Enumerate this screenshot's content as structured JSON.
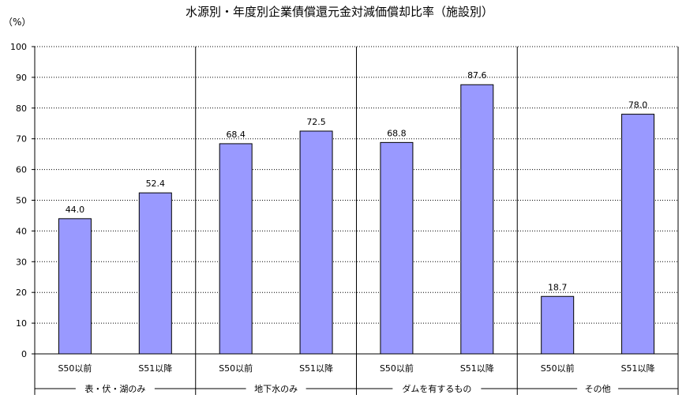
{
  "chart_data": {
    "type": "bar",
    "title": "水源別・年度別企業債償還元金対減価償却比率（施設別）",
    "ylabel": "（%）",
    "ylim": [
      0,
      100
    ],
    "yticks": [
      0,
      10,
      20,
      30,
      40,
      50,
      60,
      70,
      80,
      90,
      100
    ],
    "grid": true,
    "legend": "none",
    "groups": [
      {
        "name": "表・伏・湖のみ",
        "categories": [
          "S50以前",
          "S51以降"
        ],
        "values": [
          44.0,
          52.4
        ],
        "labels": [
          "44.0",
          "52.4"
        ]
      },
      {
        "name": "地下水のみ",
        "categories": [
          "S50以前",
          "S51以降"
        ],
        "values": [
          68.4,
          72.5
        ],
        "labels": [
          "68.4",
          "72.5"
        ]
      },
      {
        "name": "ダムを有するもの",
        "categories": [
          "S50以前",
          "S51以降"
        ],
        "values": [
          68.8,
          87.6
        ],
        "labels": [
          "68.8",
          "87.6"
        ]
      },
      {
        "name": "その他",
        "categories": [
          "S50以前",
          "S51以降"
        ],
        "values": [
          18.7,
          78.0
        ],
        "labels": [
          "18.7",
          "78.0"
        ]
      }
    ],
    "colors": {
      "bar": "#9999ff",
      "bar_stroke": "#000000",
      "grid": "#000000"
    }
  }
}
